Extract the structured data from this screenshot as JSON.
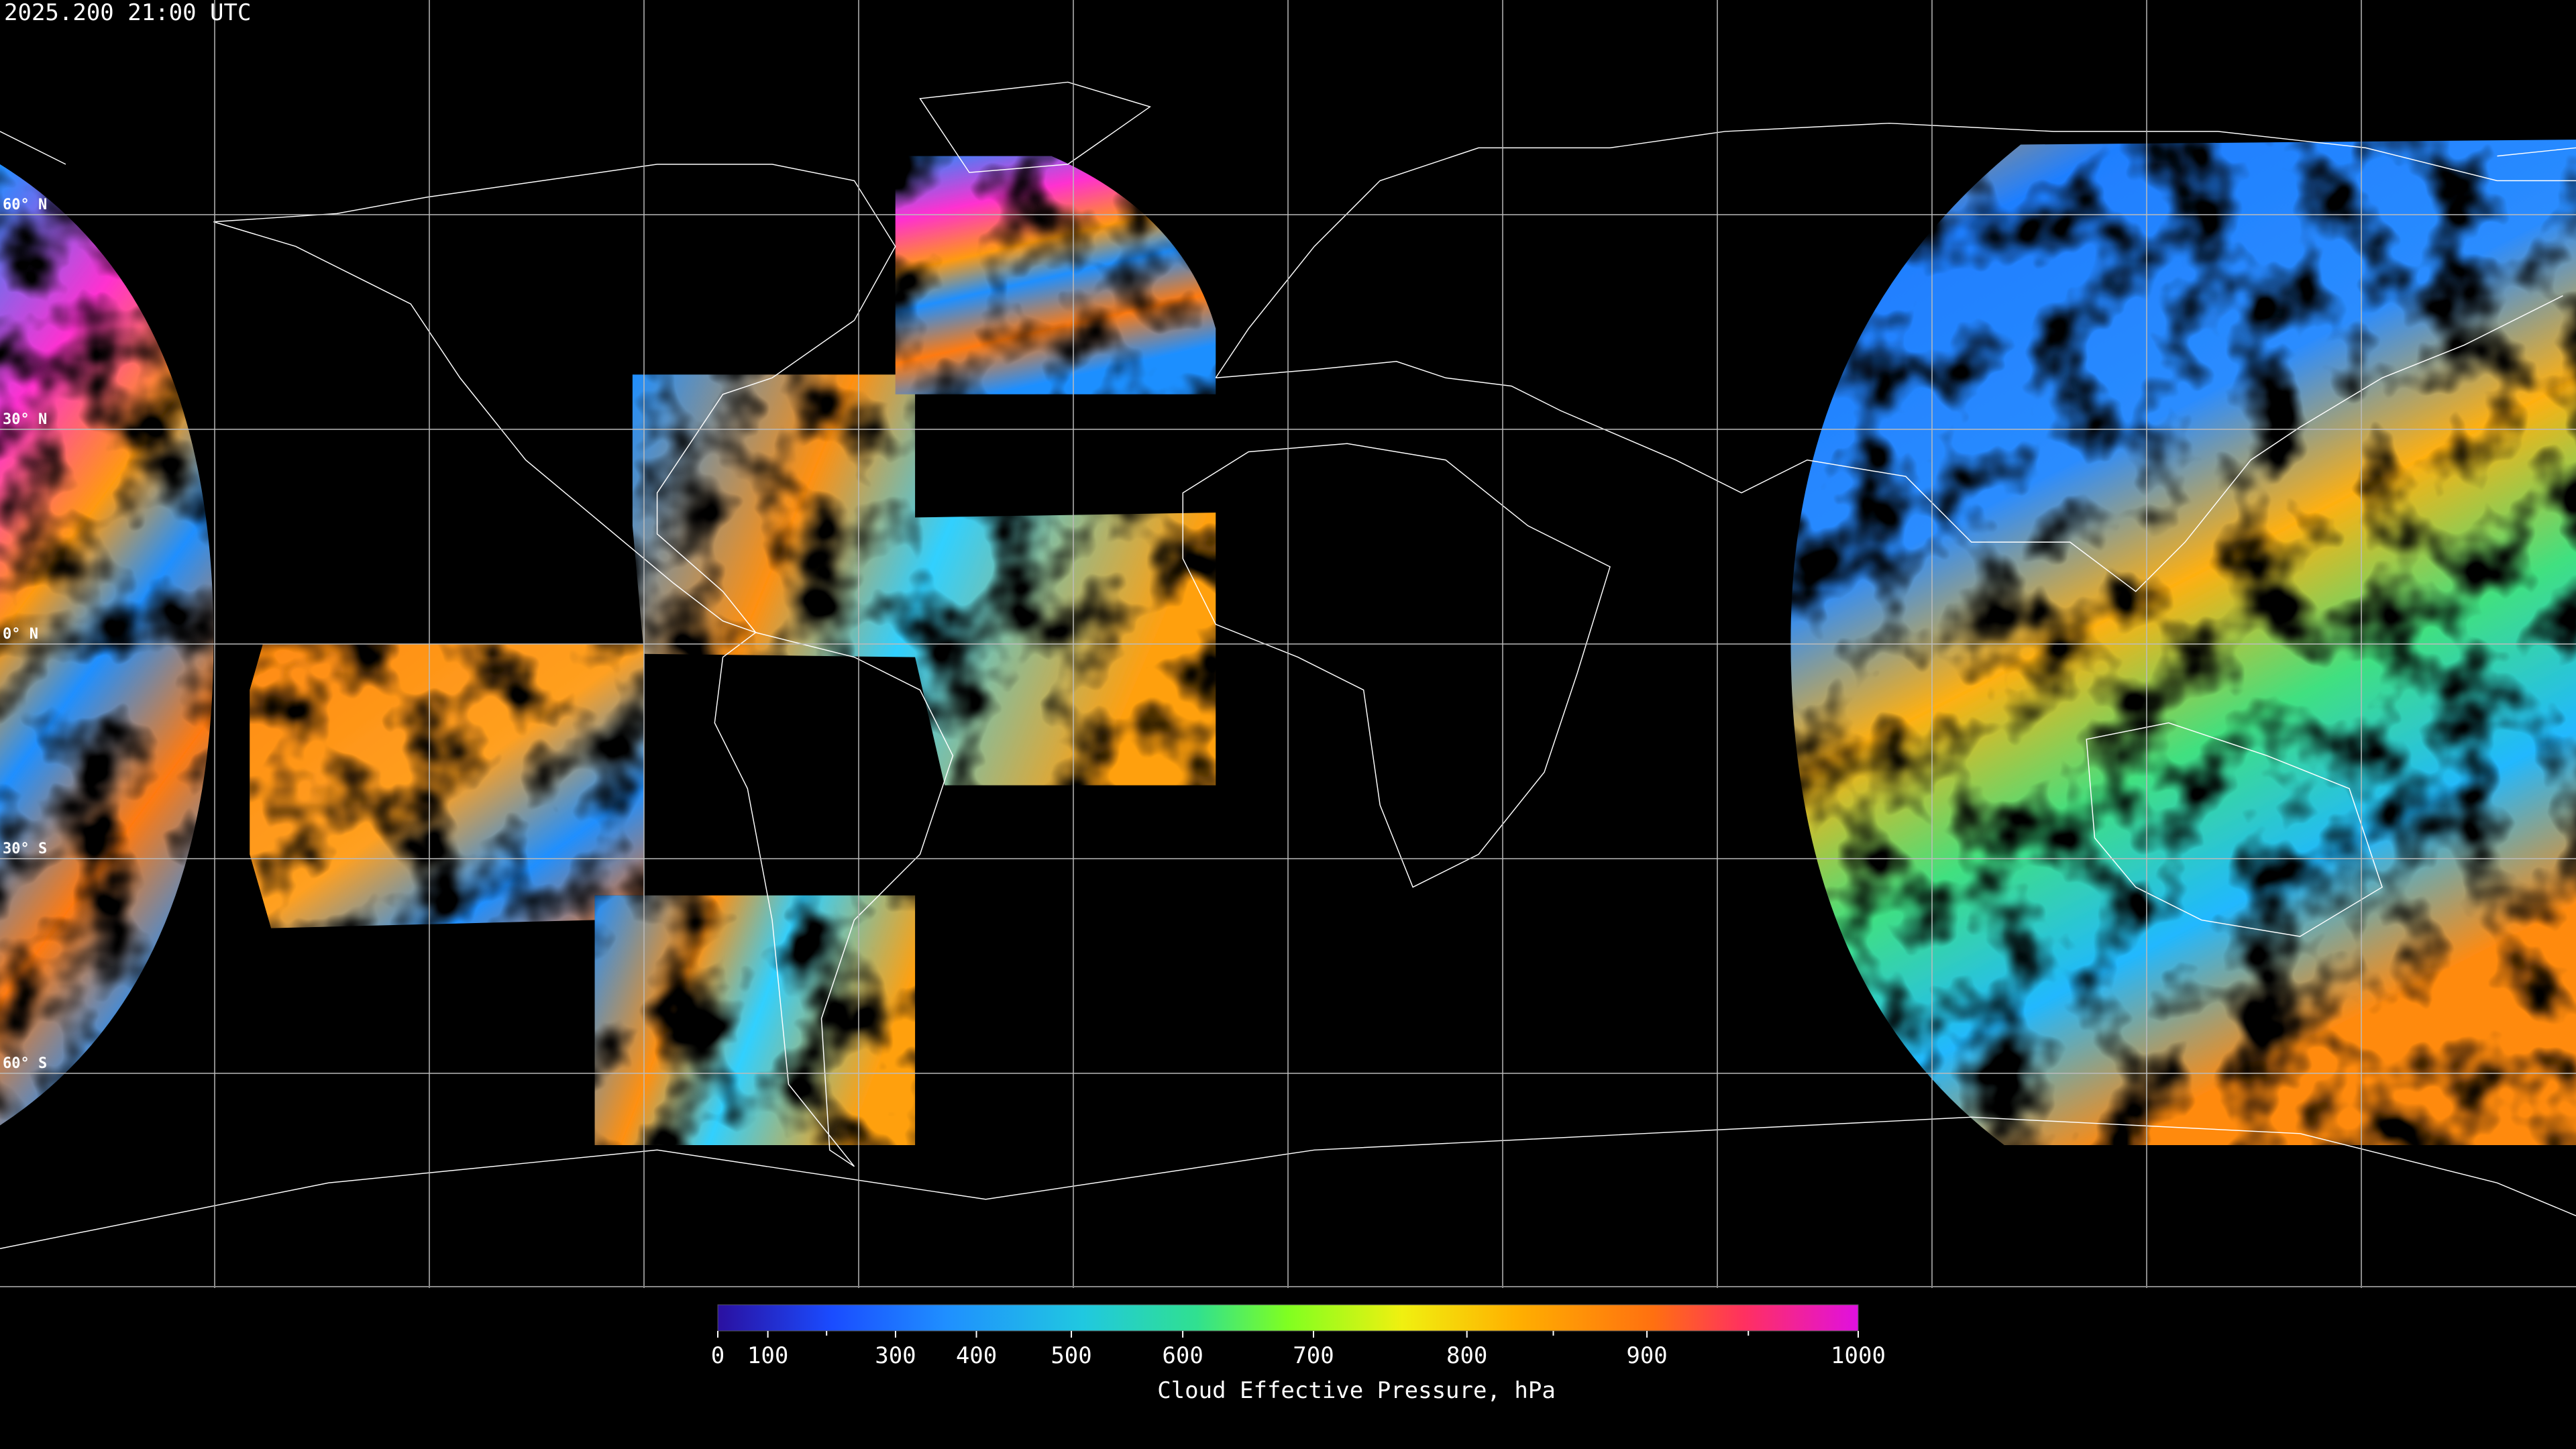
{
  "header": {
    "timestamp": "2025.200 21:00 UTC"
  },
  "map": {
    "latlim": [
      -90,
      90
    ],
    "lonlim": [
      -180,
      180
    ],
    "latticks": [
      {
        "value": 60,
        "label": "60° N"
      },
      {
        "value": 30,
        "label": "30° N"
      },
      {
        "value": 0,
        "label": "0° N"
      },
      {
        "value": -30,
        "label": "30° S"
      },
      {
        "value": -60,
        "label": "60° S"
      }
    ],
    "lonticks": [
      -150,
      -120,
      -90,
      -60,
      -30,
      0,
      30,
      60,
      90,
      120,
      150
    ],
    "grid": true
  },
  "colorbar": {
    "title": "Cloud Effective Pressure, hPa",
    "lim": [
      0,
      1000
    ],
    "scale": "exponential",
    "ticks": [
      0,
      100,
      300,
      400,
      500,
      600,
      700,
      800,
      900,
      1000
    ],
    "minor_ticks": [
      200,
      850,
      950
    ]
  }
}
